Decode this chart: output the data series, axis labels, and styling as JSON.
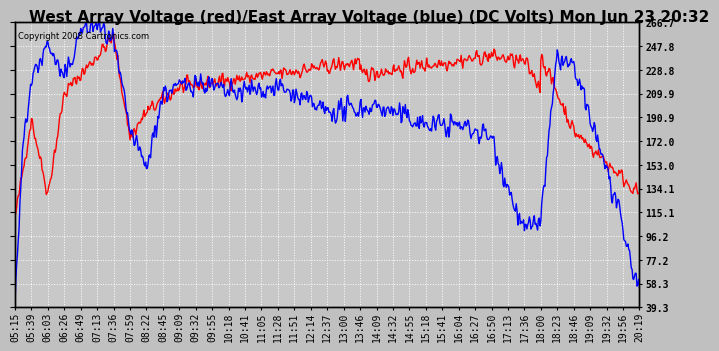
{
  "title": "West Array Voltage (red)/East Array Voltage (blue) (DC Volts) Mon Jun 23 20:32",
  "copyright": "Copyright 2008 Cartronics.com",
  "background_color": "#c0c0c0",
  "plot_bg_color": "#c8c8c8",
  "grid_color": "#ffffff",
  "y_ticks": [
    39.3,
    58.3,
    77.2,
    96.2,
    115.1,
    134.1,
    153.0,
    172.0,
    190.9,
    209.9,
    228.8,
    247.8,
    266.7
  ],
  "ylim": [
    39.3,
    266.7
  ],
  "x_labels": [
    "05:15",
    "05:39",
    "06:03",
    "06:26",
    "06:49",
    "07:13",
    "07:36",
    "07:59",
    "08:22",
    "08:45",
    "09:09",
    "09:32",
    "09:55",
    "10:18",
    "10:41",
    "11:05",
    "11:28",
    "11:51",
    "12:14",
    "12:37",
    "13:00",
    "13:46",
    "14:09",
    "14:32",
    "14:55",
    "15:18",
    "15:41",
    "16:04",
    "16:27",
    "16:50",
    "17:13",
    "17:36",
    "18:00",
    "18:23",
    "18:46",
    "19:09",
    "19:32",
    "19:56",
    "20:19"
  ],
  "red_line_color": "#ff0000",
  "blue_line_color": "#0000ff",
  "title_fontsize": 11,
  "tick_fontsize": 7,
  "linewidth": 1.0
}
